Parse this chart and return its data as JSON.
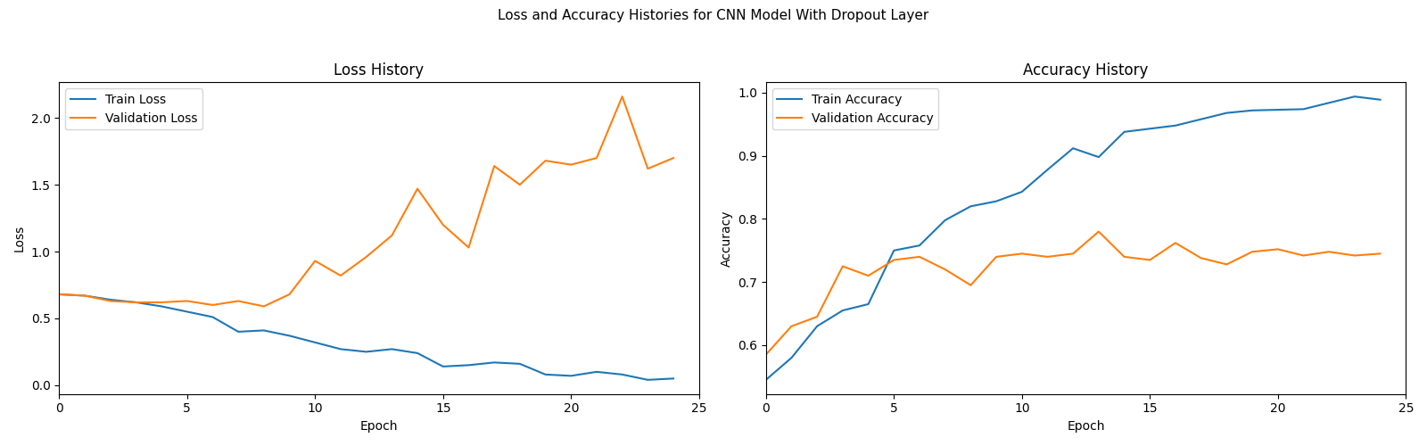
{
  "suptitle": "Loss and Accuracy Histories for CNN Model With Dropout Layer",
  "loss_title": "Loss History",
  "acc_title": "Accuracy History",
  "loss_xlabel": "Epoch",
  "loss_ylabel": "Loss",
  "acc_xlabel": "Epoch",
  "acc_ylabel": "Accuracy",
  "train_loss": [
    0.68,
    0.67,
    0.64,
    0.62,
    0.59,
    0.55,
    0.51,
    0.4,
    0.41,
    0.37,
    0.32,
    0.27,
    0.25,
    0.27,
    0.24,
    0.14,
    0.15,
    0.17,
    0.16,
    0.08,
    0.07,
    0.1,
    0.08,
    0.04,
    0.05
  ],
  "val_loss": [
    0.68,
    0.67,
    0.63,
    0.62,
    0.62,
    0.63,
    0.6,
    0.63,
    0.59,
    0.68,
    0.93,
    0.82,
    0.96,
    1.12,
    1.47,
    1.2,
    1.03,
    1.64,
    1.5,
    1.68,
    1.65,
    1.7,
    2.16,
    1.62,
    1.7
  ],
  "train_acc": [
    0.545,
    0.58,
    0.63,
    0.655,
    0.665,
    0.75,
    0.758,
    0.798,
    0.82,
    0.828,
    0.843,
    0.878,
    0.912,
    0.898,
    0.938,
    0.943,
    0.948,
    0.958,
    0.968,
    0.972,
    0.973,
    0.974,
    0.984,
    0.994,
    0.989
  ],
  "val_acc": [
    0.585,
    0.63,
    0.645,
    0.725,
    0.71,
    0.735,
    0.74,
    0.72,
    0.695,
    0.74,
    0.745,
    0.74,
    0.745,
    0.78,
    0.74,
    0.735,
    0.762,
    0.738,
    0.728,
    0.748,
    0.752,
    0.742,
    0.748,
    0.742,
    0.745
  ],
  "train_loss_color": "#1f77b4",
  "val_loss_color": "#ff7f0e",
  "train_acc_color": "#1f77b4",
  "val_acc_color": "#ff7f0e",
  "train_loss_label": "Train Loss",
  "val_loss_label": "Validation Loss",
  "train_acc_label": "Train Accuracy",
  "val_acc_label": "Validation Accuracy",
  "loss_xlim": [
    0,
    25
  ],
  "acc_xlim": [
    0,
    25
  ],
  "fig_width": 16.0,
  "fig_height": 5.0,
  "dpi": 100
}
